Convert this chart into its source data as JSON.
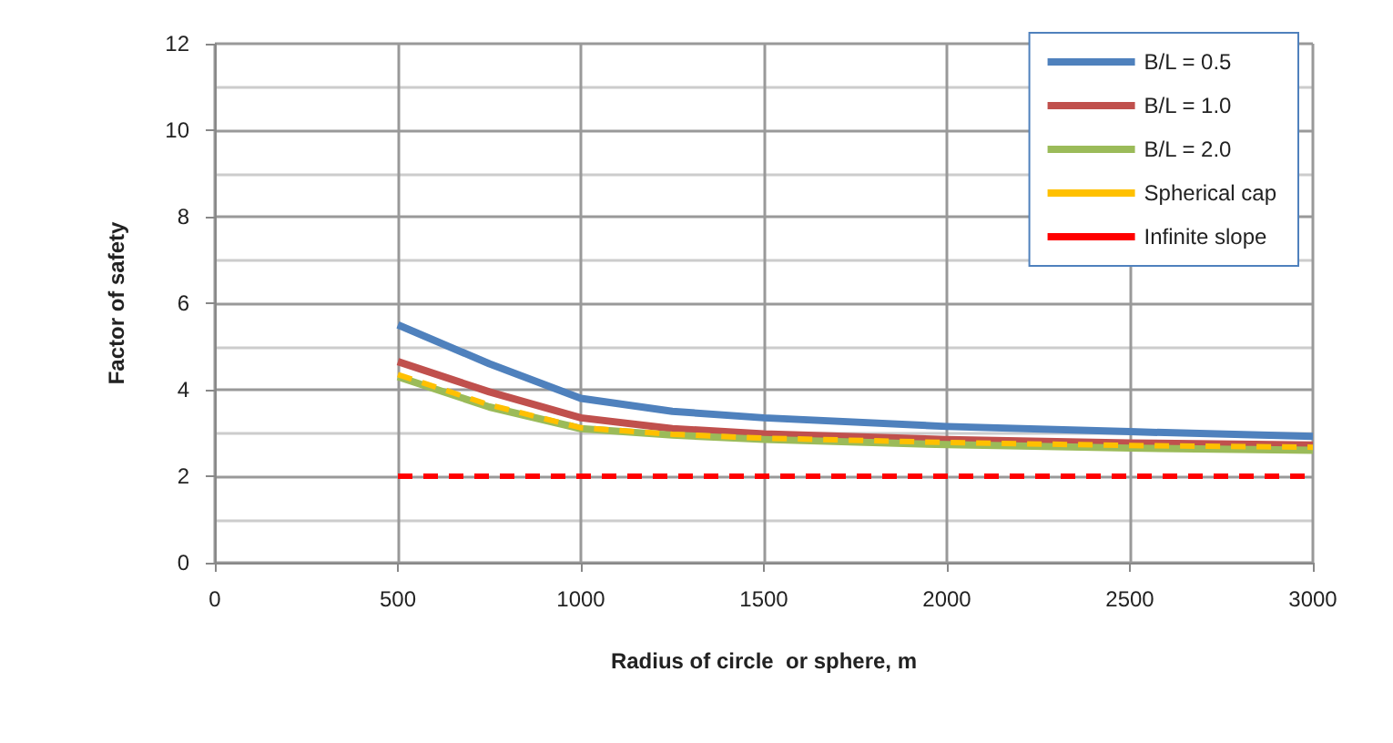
{
  "chart_data": {
    "type": "line",
    "xlabel": "Radius of circle  or sphere, m",
    "ylabel": "Factor of safety",
    "x": [
      500,
      750,
      1000,
      1250,
      1500,
      2000,
      2500,
      3000
    ],
    "series": [
      {
        "name": "B/L = 0.5",
        "color": "#4f81bd",
        "line_style": "solid",
        "values": [
          5.5,
          4.6,
          3.8,
          3.5,
          3.35,
          3.15,
          3.03,
          2.92
        ]
      },
      {
        "name": "B/L = 1.0",
        "color": "#c0504d",
        "line_style": "solid",
        "values": [
          4.65,
          3.95,
          3.35,
          3.1,
          2.98,
          2.85,
          2.77,
          2.72
        ]
      },
      {
        "name": "B/L = 2.0",
        "color": "#9bbb59",
        "line_style": "solid",
        "values": [
          4.3,
          3.6,
          3.1,
          2.95,
          2.85,
          2.73,
          2.65,
          2.6
        ]
      },
      {
        "name": "Spherical cap",
        "color": "#ffc000",
        "line_style": "dashed",
        "values": [
          4.35,
          3.65,
          3.12,
          2.97,
          2.88,
          2.78,
          2.71,
          2.67
        ]
      },
      {
        "name": "Infinite slope",
        "color": "#ff0000",
        "line_style": "dashed",
        "values": [
          2,
          2,
          2,
          2,
          2,
          2,
          2,
          2
        ]
      }
    ],
    "xlim": [
      0,
      3000
    ],
    "xticks": [
      0,
      500,
      1000,
      1500,
      2000,
      2500,
      3000
    ],
    "ylim": [
      0,
      12
    ],
    "yticks": [
      0,
      2,
      4,
      6,
      8,
      10,
      12
    ],
    "grid": true,
    "legend": "top right",
    "marker": "none"
  }
}
